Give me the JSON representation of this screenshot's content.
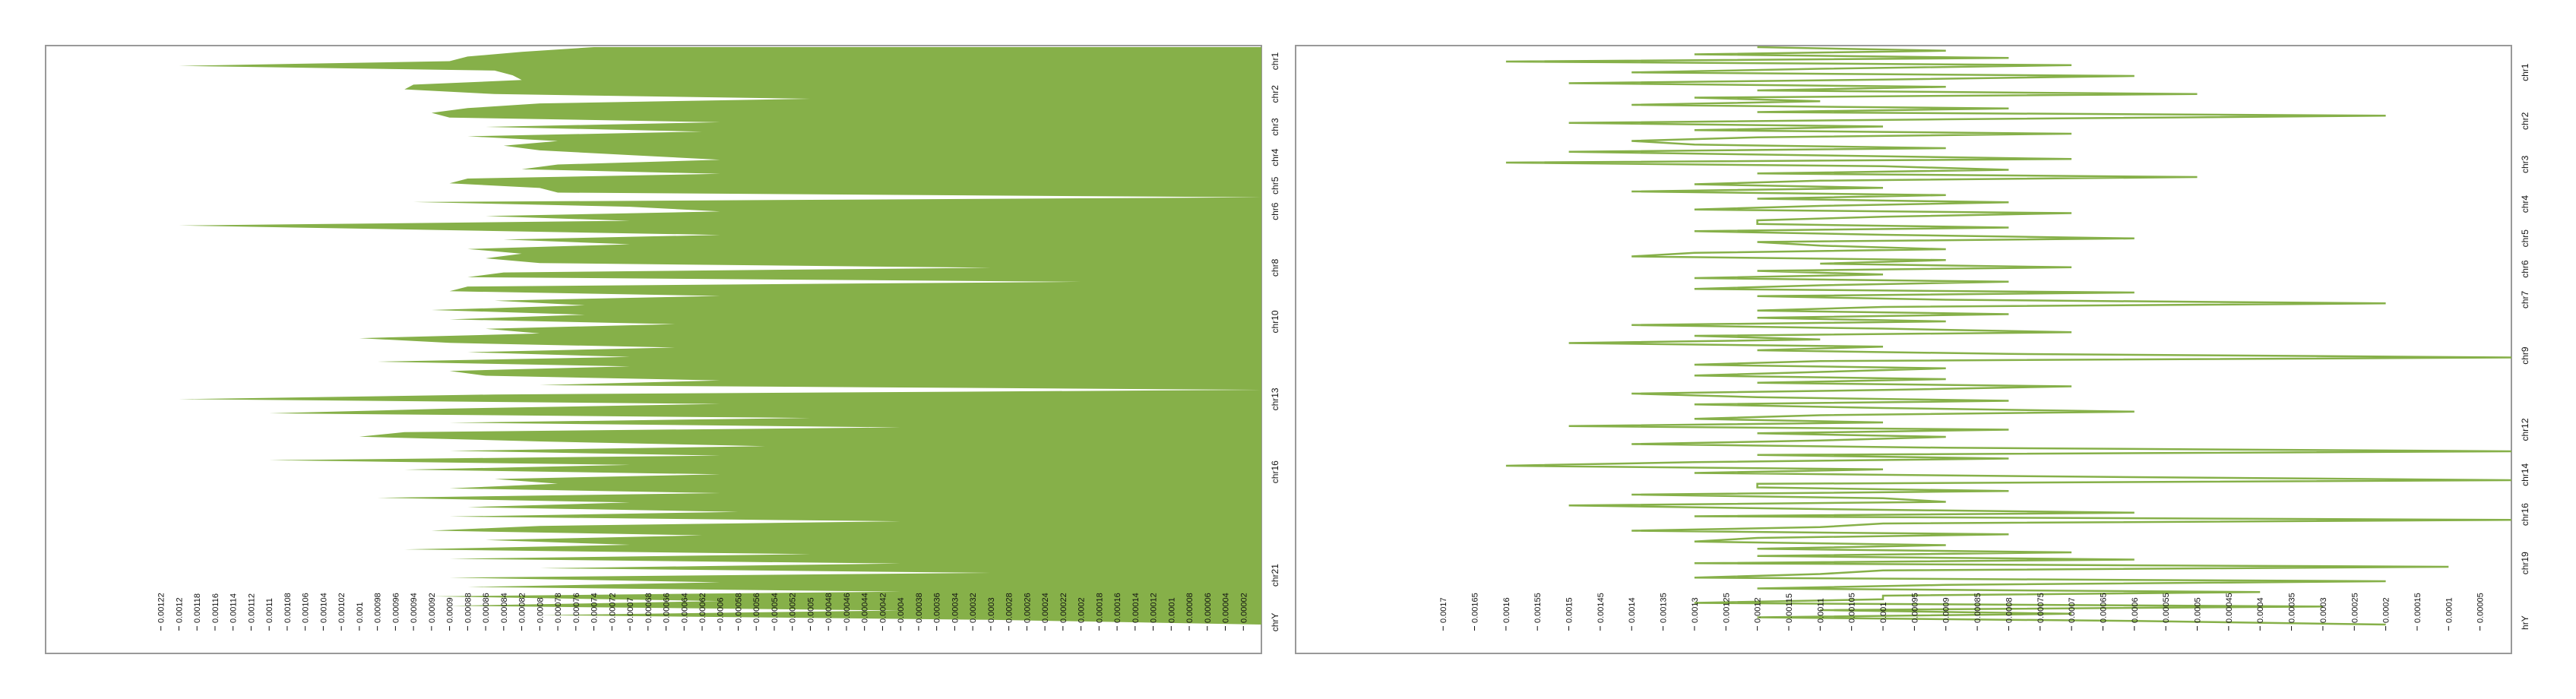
{
  "colors": {
    "series": "#86b049",
    "frame": "#999999",
    "text": "#111111"
  },
  "chart_data": [
    {
      "type": "area",
      "orientation": "horizontal",
      "x_direction": "reversed",
      "series": [
        {
          "values_by_chrom": {
            "chr1": [
              0.00074,
              0.00082,
              0.00088,
              0.0009,
              0.0012,
              0.00085,
              0.00083
            ],
            "chr2": [
              0.00082,
              0.00094,
              0.00095,
              0.00085,
              0.0005,
              0.0008,
              0.00088
            ],
            "chr3": [
              0.00092,
              0.0009,
              0.0006,
              0.00086,
              0.00062,
              0.00088,
              0.00078
            ],
            "chr4": [
              0.00084,
              0.0008,
              0.0007,
              0.0006,
              0.00078,
              0.00082
            ],
            "chr5": [
              0.0006,
              0.00088,
              0.0009,
              0.0008,
              0.00078,
              0.0
            ],
            "chr6": [
              0.00094,
              0.0007,
              0.0006,
              0.00086,
              0.0007
            ],
            "chr7": [
              0.0012,
              0.0009,
              0.0006,
              0.00084,
              0.0007,
              0.00088
            ],
            "chr8": [
              0.00082,
              0.00086,
              0.0008,
              0.0003,
              0.00084,
              0.00088,
              0.0002
            ],
            "chr9": [
              0.00088,
              0.0009,
              0.0006,
              0.00085,
              0.00075
            ],
            "chr10": [
              0.00092,
              0.00075,
              0.0009,
              0.00065,
              0.00086,
              0.0008
            ],
            "chr11": [
              0.001,
              0.0009,
              0.00065,
              0.00088,
              0.0007
            ],
            "chr12": [
              0.00098,
              0.0007,
              0.0009,
              0.00086,
              0.0006,
              0.0008
            ],
            "chr13": [
              0.0,
              0.00085,
              0.0012,
              0.0006,
              0.0009
            ],
            "chr14": [
              0.0011,
              0.0005,
              0.0009,
              0.0004,
              0.00095
            ],
            "chr15": [
              0.001,
              0.0008,
              0.00055,
              0.0009,
              0.0006
            ],
            "chr16": [
              0.0011,
              0.0007,
              0.00095,
              0.0006,
              0.00085,
              0.00078
            ],
            "chr17": [
              0.0009,
              0.0006,
              0.00098,
              0.0007
            ],
            "chr18": [
              0.00088,
              0.00058,
              0.0009,
              0.0004,
              0.0008
            ],
            "chr19": [
              0.00092,
              0.00062,
              0.00086,
              0.0007
            ],
            "chr20": [
              0.00095,
              0.0005,
              0.0009,
              0.0004
            ],
            "chr21": [
              0.0008,
              0.0003,
              0.0009,
              0.0006
            ],
            "chr22": [
              0.00088,
              0.0004,
              0.00092
            ],
            "chrX": [
              0.0006,
              0.0009,
              0.0004,
              0.0008
            ],
            "chrY": [
              0.0003,
              0.0
            ]
          }
        }
      ],
      "xlim": [
        0.00124,
        0.0
      ],
      "xticks": [
        "0.00122",
        "0.0012",
        "0.00118",
        "0.00116",
        "0.00114",
        "0.00112",
        "0.0011",
        "0.00108",
        "0.00106",
        "0.00104",
        "0.00102",
        "0.001",
        "0.00098",
        "0.00096",
        "0.00094",
        "0.00092",
        "0.0009",
        "0.00088",
        "0.00086",
        "0.00084",
        "0.00082",
        "0.0008",
        "0.00078",
        "0.00076",
        "0.00074",
        "0.00072",
        "0.0007",
        "0.00068",
        "0.00066",
        "0.00064",
        "0.00062",
        "0.0006",
        "0.00058",
        "0.00056",
        "0.00054",
        "0.00052",
        "0.0005",
        "0.00048",
        "0.00046",
        "0.00044",
        "0.00042",
        "0.0004",
        "0.00038",
        "0.00036",
        "0.00034",
        "0.00032",
        "0.0003",
        "0.00028",
        "0.00026",
        "0.00024",
        "0.00022",
        "0.0002",
        "0.00018",
        "0.00016",
        "0.00014",
        "0.00012",
        "0.0001",
        "0.00008",
        "0.00006",
        "0.00004",
        "0.00002"
      ],
      "chrom_labels": [
        "chr1",
        "chr2",
        "chr3",
        "chr4",
        "chr5",
        "chr6",
        "chr8",
        "chr10",
        "chr13",
        "chr16",
        "chr21",
        "chrY"
      ]
    },
    {
      "type": "line",
      "orientation": "horizontal",
      "x_direction": "reversed",
      "series": [
        {
          "values_by_chrom": {
            "chr1": [
              0.0012,
              0.0009,
              0.0013,
              0.0008,
              0.0016,
              0.0007,
              0.0011,
              0.0014,
              0.0006,
              0.001,
              0.0015,
              0.0009,
              0.0012,
              0.0005,
              0.0013
            ],
            "chr2": [
              0.0011,
              0.0014,
              0.0008,
              0.0012,
              0.0002,
              0.0009,
              0.0015,
              0.001,
              0.0013,
              0.0007,
              0.0012,
              0.0014
            ],
            "chr3": [
              0.0013,
              0.0009,
              0.0015,
              0.0011,
              0.0007,
              0.0016,
              0.001,
              0.0008,
              0.0012,
              0.0005,
              0.0011,
              0.0013
            ],
            "chr4": [
              0.001,
              0.0014,
              0.0009,
              0.0012,
              0.0008,
              0.0011,
              0.0013,
              0.0007,
              0.001,
              0.0012
            ],
            "chr5": [
              0.0012,
              0.0008,
              0.0013,
              0.001,
              0.0006,
              0.0012,
              0.0011,
              0.0009,
              0.0013
            ],
            "chr6": [
              0.0014,
              0.0009,
              0.0011,
              0.0007,
              0.0012,
              0.001,
              0.0013,
              0.0008
            ],
            "chr7": [
              0.0011,
              0.0013,
              0.0006,
              0.0012,
              0.0009,
              0.0002,
              0.001,
              0.0012,
              0.0008
            ],
            "chr8": [
              0.0012,
              0.0009,
              0.0014,
              0.001,
              0.0007,
              0.0013,
              0.0011
            ],
            "chr9": [
              0.0015,
              0.001,
              0.0012,
              0.0008,
              0.0,
              0.0011,
              0.0013,
              0.0009
            ],
            "chr10": [
              0.0011,
              0.0013,
              0.0009,
              0.0012,
              0.0007,
              0.001,
              0.0014
            ],
            "chr11": [
              0.0012,
              0.0008,
              0.0013,
              0.001,
              0.0006,
              0.0011
            ],
            "chr12": [
              0.0013,
              0.001,
              0.0015,
              0.0008,
              0.0012,
              0.0009,
              0.0011
            ],
            "chr13": [
              0.0014,
              0.0009,
              0.0,
              0.0012,
              0.0008,
              0.0013
            ],
            "chr14": [
              0.0016,
              0.001,
              0.0013,
              0.0007,
              0.0,
              0.0012
            ],
            "chr15": [
              0.0012,
              0.0008,
              0.0014,
              0.001,
              0.0009
            ],
            "chr16": [
              0.0015,
              0.0011,
              0.0006,
              0.0013,
              0.0,
              0.001
            ],
            "chr17": [
              0.0011,
              0.0014,
              0.0008,
              0.0012
            ],
            "chr18": [
              0.0013,
              0.0009,
              0.0012,
              0.0007
            ],
            "chr19": [
              0.0012,
              0.0006,
              0.0013,
              0.0001,
              0.001
            ],
            "chr20": [
              0.0011,
              0.0013,
              0.0002,
              0.0009
            ],
            "chr21": [
              0.0012,
              0.0004,
              0.001
            ],
            "chr22": [
              0.001,
              0.0013,
              0.0003
            ],
            "chrX": [
              0.0011,
              0.0007,
              0.0012
            ],
            "chrY": [
              0.0006,
              0.0002
            ]
          }
        }
      ],
      "xlim": [
        0.00178,
        0.0
      ],
      "xticks": [
        "0.0017",
        "0.00165",
        "0.0016",
        "0.00155",
        "0.0015",
        "0.00145",
        "0.0014",
        "0.00135",
        "0.0013",
        "0.00125",
        "0.0012",
        "0.00115",
        "0.0011",
        "0.00105",
        "0.001",
        "0.00095",
        "0.0009",
        "0.00085",
        "0.0008",
        "0.00075",
        "0.0007",
        "0.00065",
        "0.0006",
        "0.00055",
        "0.0005",
        "0.00045",
        "0.0004",
        "0.00035",
        "0.0003",
        "0.00025",
        "0.0002",
        "0.00015",
        "0.0001",
        "0.00005"
      ],
      "chrom_labels": [
        "chr1",
        "chr2",
        "chr3",
        "chr4",
        "chr5",
        "chr6",
        "chr7",
        "chr9",
        "chr12",
        "chr14",
        "chr16",
        "chr19",
        "hrY"
      ]
    }
  ]
}
